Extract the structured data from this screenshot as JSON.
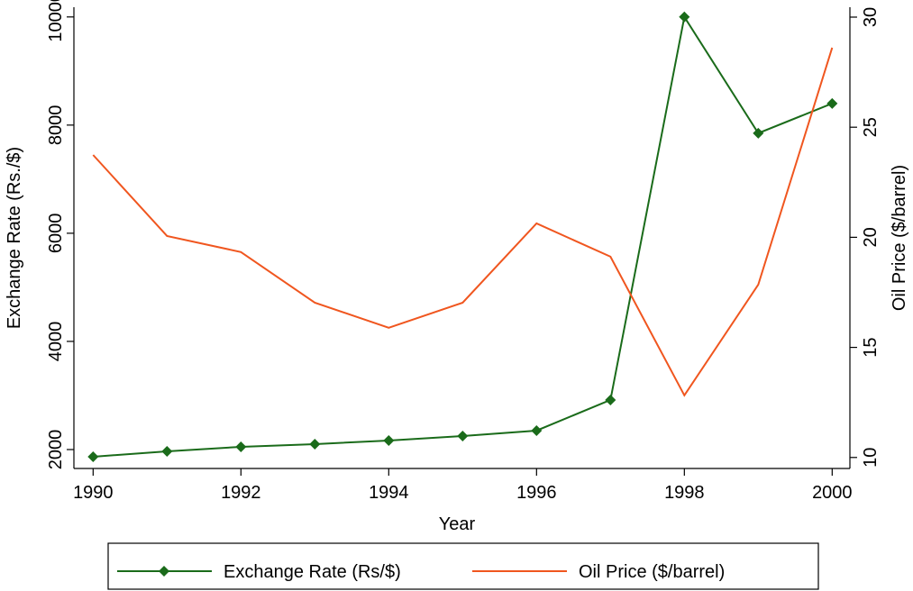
{
  "chart_data": {
    "type": "line",
    "x": [
      1990,
      1991,
      1992,
      1993,
      1994,
      1995,
      1996,
      1997,
      1998,
      1999,
      2000
    ],
    "xlabel": "Year",
    "ylabel": "Exchange Rate (Rs./$)",
    "y2label": "Oil Price ($/barrel)",
    "xlim": [
      1989.74,
      2000.24
    ],
    "xticks": [
      1990,
      1992,
      1994,
      1996,
      1998,
      2000
    ],
    "ylim": [
      1650,
      10180
    ],
    "yticks": [
      2000,
      4000,
      6000,
      8000,
      10000
    ],
    "y2lim": [
      9.5,
      30.45
    ],
    "y2ticks": [
      10,
      15,
      20,
      25,
      30
    ],
    "legend": "bottom",
    "series": [
      {
        "name": "Exchange Rate (Rs/$)",
        "color": "#1a6b1a",
        "marker": "diamond",
        "values": [
          1867,
          1967,
          2050,
          2100,
          2167,
          2250,
          2350,
          2917,
          10000,
          7850,
          8400
        ]
      },
      {
        "name": "Oil Price ($/barrel)",
        "color": "#f0561f",
        "axis": "y2",
        "values": [
          23.74,
          20.06,
          19.33,
          17.03,
          15.89,
          17.03,
          20.63,
          19.12,
          12.82,
          17.85,
          28.61
        ]
      }
    ]
  }
}
